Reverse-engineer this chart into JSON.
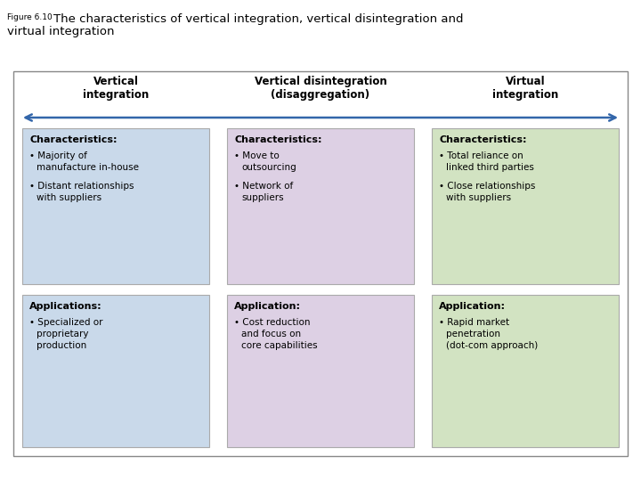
{
  "title_figure": "Figure 6.10",
  "title_main_1": "The characteristics of vertical integration, vertical disintegration and",
  "title_main_2": "virtual integration",
  "bg_color": "#ffffff",
  "outer_border_color": "#888888",
  "arrow_color": "#3366aa",
  "columns": [
    {
      "header": "Vertical\nintegration",
      "char_bg": "#c9d9ea",
      "char_border": "#aaaaaa",
      "app_bg": "#c9d9ea",
      "app_border": "#aaaaaa",
      "char_title": "Characteristics:",
      "char_bullets": [
        "Majority of\nmanufacture in-house",
        "Distant relationships\nwith suppliers"
      ],
      "app_title": "Applications:",
      "app_bullets": [
        "Specialized or\nproprietary\nproduction"
      ]
    },
    {
      "header": "Vertical disintegration\n(disaggregation)",
      "char_bg": "#ddd0e4",
      "char_border": "#aaaaaa",
      "app_bg": "#ddd0e4",
      "app_border": "#aaaaaa",
      "char_title": "Characteristics:",
      "char_bullets": [
        "Move to\noutsourcing",
        "Network of\nsuppliers"
      ],
      "app_title": "Application:",
      "app_bullets": [
        "Cost reduction\nand focus on\ncore capabilities"
      ]
    },
    {
      "header": "Virtual\nintegration",
      "char_bg": "#d2e3c2",
      "char_border": "#aaaaaa",
      "app_bg": "#d2e3c2",
      "app_border": "#aaaaaa",
      "char_title": "Characteristics:",
      "char_bullets": [
        "Total reliance on\nlinked third parties",
        "Close relationships\nwith suppliers"
      ],
      "app_title": "Application:",
      "app_bullets": [
        "Rapid market\npenetration\n(dot-com approach)"
      ]
    }
  ]
}
